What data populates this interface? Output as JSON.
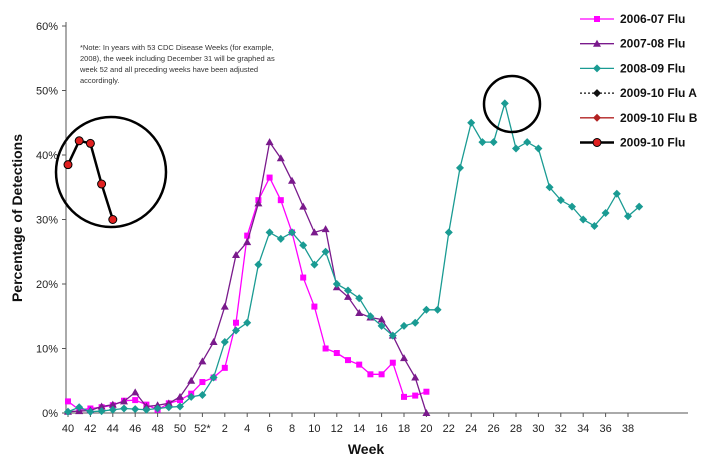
{
  "chart_data": {
    "type": "line",
    "title": "",
    "xlabel": "Week",
    "ylabel": "Percentage of Detections",
    "ylim": [
      0,
      60
    ],
    "y_ticks": [
      "0%",
      "10%",
      "20%",
      "30%",
      "40%",
      "50%",
      "60%"
    ],
    "x_ticks": [
      "40",
      "42",
      "44",
      "46",
      "48",
      "50",
      "52*",
      "2",
      "4",
      "6",
      "8",
      "10",
      "12",
      "14",
      "16",
      "18",
      "20",
      "22",
      "24",
      "26",
      "28",
      "30",
      "32",
      "34",
      "36",
      "38"
    ],
    "x_tick_positions": [
      0,
      2,
      4,
      6,
      8,
      10,
      12,
      14,
      16,
      18,
      20,
      22,
      24,
      26,
      28,
      30,
      32,
      34,
      36,
      38,
      40,
      42,
      44,
      46,
      48,
      50
    ],
    "legend_position": "top-right",
    "note": "*Note: In years with 53 CDC Disease Weeks (for example, 2008), the week including December 31 will be graphed as week 52 and all preceding weeks have been adjusted accordingly.",
    "series": [
      {
        "name": "2006-07 Flu",
        "color": "#ff00ff",
        "marker": "square",
        "line_style": "solid",
        "x": [
          0,
          1,
          2,
          3,
          4,
          5,
          6,
          7,
          8,
          9,
          10,
          11,
          12,
          13,
          14,
          15,
          16,
          17,
          18,
          19,
          20,
          21,
          22,
          23,
          24,
          25,
          26,
          27,
          28,
          29,
          30,
          31,
          32
        ],
        "y": [
          1.8,
          0.5,
          0.7,
          0.9,
          1.2,
          1.9,
          2.0,
          1.3,
          0.5,
          1.5,
          2.0,
          3.0,
          4.8,
          5.5,
          7.0,
          14.0,
          27.5,
          33.0,
          36.5,
          33.0,
          28.0,
          21.0,
          16.5,
          10.0,
          9.3,
          8.2,
          7.5,
          6.0,
          6.0,
          7.8,
          2.5,
          2.7,
          3.3
        ]
      },
      {
        "name": "2007-08 Flu",
        "color": "#7a1a8c",
        "marker": "triangle",
        "line_style": "solid",
        "x": [
          0,
          1,
          2,
          3,
          4,
          5,
          6,
          7,
          8,
          9,
          10,
          11,
          12,
          13,
          14,
          15,
          16,
          17,
          18,
          19,
          20,
          21,
          22,
          23,
          24,
          25,
          26,
          27,
          28,
          29,
          30,
          31,
          32
        ],
        "y": [
          0.2,
          0.3,
          0.4,
          1.0,
          1.3,
          1.8,
          3.2,
          1.0,
          1.2,
          1.5,
          2.5,
          5.0,
          8.0,
          11.0,
          16.5,
          24.5,
          26.5,
          32.5,
          42.0,
          39.5,
          36.0,
          32.0,
          28.0,
          28.5,
          19.5,
          18.0,
          15.5,
          14.8,
          14.5,
          12.0,
          8.5,
          5.5,
          0.0
        ]
      },
      {
        "name": "2008-09 Flu",
        "color": "#1a9b93",
        "marker": "diamond",
        "line_style": "solid",
        "x": [
          0,
          1,
          2,
          3,
          4,
          5,
          6,
          7,
          8,
          9,
          10,
          11,
          12,
          13,
          14,
          15,
          16,
          17,
          18,
          19,
          20,
          21,
          22,
          23,
          24,
          25,
          26,
          27,
          28,
          29,
          30,
          31,
          32,
          33,
          34,
          35,
          36,
          37,
          38,
          39,
          40,
          41,
          42,
          43,
          44,
          45,
          46,
          47,
          48,
          49,
          50,
          51
        ],
        "y": [
          0.2,
          0.9,
          0.2,
          0.3,
          0.5,
          0.7,
          0.6,
          0.5,
          0.7,
          0.9,
          1.0,
          2.5,
          2.8,
          5.5,
          11.0,
          12.8,
          14.0,
          23.0,
          28.0,
          27.0,
          28.0,
          26.0,
          23.0,
          25.0,
          20.0,
          19.0,
          17.8,
          15.0,
          13.5,
          12.0,
          13.5,
          14.0,
          16.0,
          16.0,
          28.0,
          38.0,
          45.0,
          42.0,
          42.0,
          48.0,
          41.0,
          42.0,
          41.0,
          35.0,
          33.0,
          32.0,
          30.0,
          29.0,
          31.0,
          34.0,
          30.5,
          32.0
        ]
      },
      {
        "name": "2009-10 Flu A",
        "color": "#111111",
        "marker": "diamond",
        "line_style": "dotted",
        "x": [],
        "y": []
      },
      {
        "name": "2009-10 Flu B",
        "color": "#b22222",
        "marker": "diamond",
        "line_style": "solid",
        "x": [],
        "y": []
      },
      {
        "name": "2009-10 Flu",
        "color": "#000000",
        "marker": "circle",
        "marker_fill": "#e02020",
        "line_style": "solid",
        "x": [
          0,
          1,
          2,
          3,
          4
        ],
        "y": [
          38.5,
          42.2,
          41.8,
          35.5,
          30.0
        ]
      }
    ]
  }
}
